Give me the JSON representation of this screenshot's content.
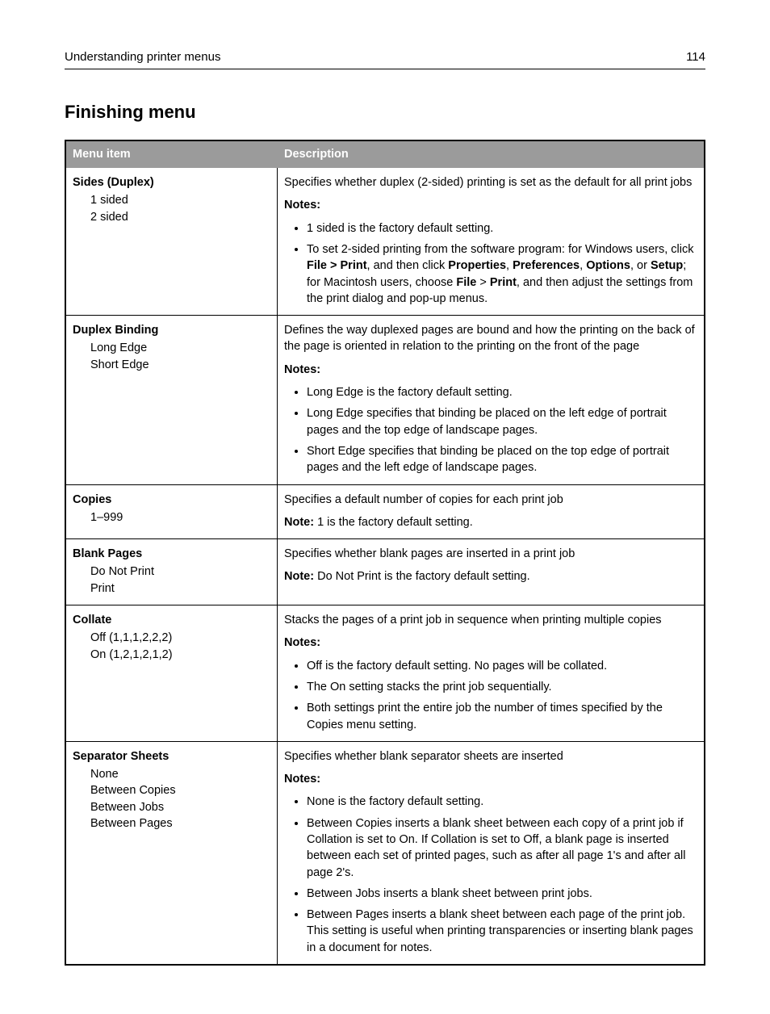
{
  "header": {
    "title": "Understanding printer menus",
    "page_number": "114"
  },
  "section_title": "Finishing menu",
  "table": {
    "columns": [
      "Menu item",
      "Description"
    ]
  },
  "rows": {
    "sides": {
      "title": "Sides (Duplex)",
      "opt1": "1 sided",
      "opt2": "2 sided",
      "desc_intro": "Specifies whether duplex (2-sided) printing is set as the default for all print jobs",
      "notes_label": "Notes:",
      "note1": "1 sided is the factory default setting.",
      "note2_a": "To set 2-sided printing from the software program: for Windows users, click ",
      "note2_b": "File > Print",
      "note2_c": ", and then click ",
      "note2_d": "Properties",
      "note2_e": ", ",
      "note2_f": "Preferences",
      "note2_g": ", ",
      "note2_h": "Options",
      "note2_i": ", or ",
      "note2_j": "Setup",
      "note2_k": "; for Macintosh users, choose ",
      "note2_l": "File",
      "note2_m": " > ",
      "note2_n": "Print",
      "note2_o": ", and then adjust the settings from the print dialog and pop-up menus."
    },
    "duplex_binding": {
      "title": "Duplex Binding",
      "opt1": "Long Edge",
      "opt2": "Short Edge",
      "desc_intro": "Defines the way duplexed pages are bound and how the printing on the back of the page is oriented in relation to the printing on the front of the page",
      "notes_label": "Notes:",
      "note1": "Long Edge is the factory default setting.",
      "note2": "Long Edge specifies that binding be placed on the left edge of portrait pages and the top edge of landscape pages.",
      "note3": "Short Edge specifies that binding be placed on the top edge of portrait pages and the left edge of landscape pages."
    },
    "copies": {
      "title": "Copies",
      "opt1": "1–999",
      "desc_intro": "Specifies a default number of copies for each print job",
      "note_label": "Note:",
      "note_text": " 1 is the factory default setting."
    },
    "blank_pages": {
      "title": "Blank Pages",
      "opt1": "Do Not Print",
      "opt2": "Print",
      "desc_intro": "Specifies whether blank pages are inserted in a print job",
      "note_label": "Note:",
      "note_text": " Do Not Print is the factory default setting."
    },
    "collate": {
      "title": "Collate",
      "opt1": "Off (1,1,1,2,2,2)",
      "opt2": "On (1,2,1,2,1,2)",
      "desc_intro": "Stacks the pages of a print job in sequence when printing multiple copies",
      "notes_label": "Notes:",
      "note1": "Off is the factory default setting. No pages will be collated.",
      "note2": "The On setting stacks the print job sequentially.",
      "note3": "Both settings print the entire job the number of times specified by the Copies menu setting."
    },
    "separator": {
      "title": "Separator Sheets",
      "opt1": "None",
      "opt2": "Between Copies",
      "opt3": "Between Jobs",
      "opt4": "Between Pages",
      "desc_intro": "Specifies whether blank separator sheets are inserted",
      "notes_label": "Notes:",
      "note1": "None is the factory default setting.",
      "note2": "Between Copies inserts a blank sheet between each copy of a print job if Collation is set to On. If Collation is set to Off, a blank page is inserted between each set of printed pages, such as after all page 1's and after all page 2's.",
      "note3": "Between Jobs inserts a blank sheet between print jobs.",
      "note4": "Between Pages inserts a blank sheet between each page of the print job. This setting is useful when printing transparencies or inserting blank pages in a document for notes."
    }
  }
}
